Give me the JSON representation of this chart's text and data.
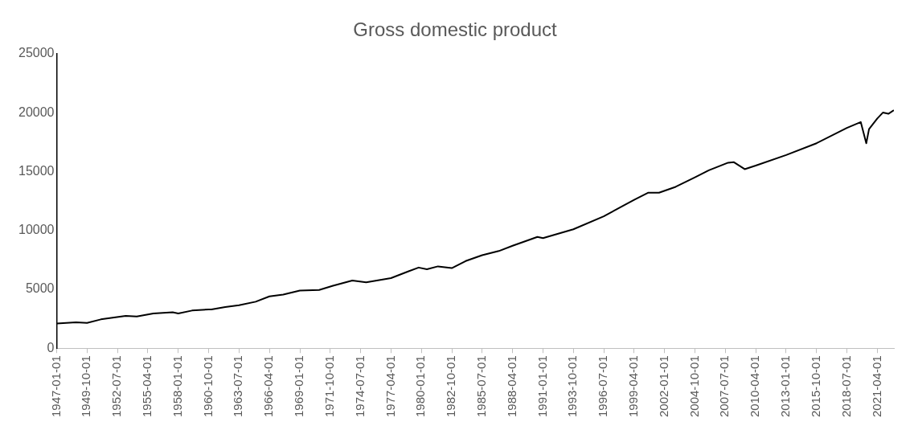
{
  "chart_data": {
    "type": "line",
    "title": "Gross domestic product",
    "x": [
      "1947-01-01",
      "1948-10-01",
      "1949-10-01",
      "1951-01-01",
      "1953-04-01",
      "1954-04-01",
      "1955-10-01",
      "1957-07-01",
      "1958-01-01",
      "1959-04-01",
      "1960-10-01",
      "1961-01-01",
      "1962-04-01",
      "1963-07-01",
      "1965-01-01",
      "1966-04-01",
      "1967-07-01",
      "1969-01-01",
      "1970-10-01",
      "1972-01-01",
      "1973-10-01",
      "1975-01-01",
      "1977-04-01",
      "1978-10-01",
      "1979-10-01",
      "1980-07-01",
      "1981-07-01",
      "1982-10-01",
      "1984-01-01",
      "1985-07-01",
      "1987-01-01",
      "1988-04-01",
      "1990-07-01",
      "1991-01-01",
      "1993-10-01",
      "1996-07-01",
      "1999-04-01",
      "2000-07-01",
      "2001-07-01",
      "2003-01-01",
      "2004-10-01",
      "2006-01-01",
      "2007-10-01",
      "2008-04-01",
      "2009-04-01",
      "2010-04-01",
      "2013-01-01",
      "2015-10-01",
      "2018-07-01",
      "2019-10-01",
      "2020-04-01",
      "2020-07-01",
      "2021-04-01",
      "2021-10-01",
      "2022-04-01",
      "2022-10-01"
    ],
    "values": [
      2100,
      2200,
      2150,
      2450,
      2750,
      2700,
      2950,
      3050,
      2950,
      3200,
      3300,
      3300,
      3500,
      3650,
      3950,
      4400,
      4550,
      4900,
      4950,
      5300,
      5750,
      5600,
      5950,
      6500,
      6850,
      6700,
      6950,
      6800,
      7400,
      7900,
      8250,
      8700,
      9450,
      9350,
      10100,
      11200,
      12600,
      13200,
      13200,
      13700,
      14500,
      15100,
      15750,
      15800,
      15200,
      15500,
      16400,
      17400,
      18700,
      19200,
      17400,
      18600,
      19500,
      20000,
      19900,
      20200
    ],
    "color": "#000000",
    "xlim": [
      "1947-01-01",
      "2022-10-01"
    ],
    "xticks": [
      "1947-01-01",
      "1949-10-01",
      "1952-07-01",
      "1955-04-01",
      "1958-01-01",
      "1960-10-01",
      "1963-07-01",
      "1966-04-01",
      "1969-01-01",
      "1971-10-01",
      "1974-07-01",
      "1977-04-01",
      "1980-01-01",
      "1982-10-01",
      "1985-07-01",
      "1988-04-01",
      "1991-01-01",
      "1993-10-01",
      "1996-07-01",
      "1999-04-01",
      "2002-01-01",
      "2004-10-01",
      "2007-07-01",
      "2010-04-01",
      "2013-01-01",
      "2015-10-01",
      "2018-07-01",
      "2021-04-01"
    ],
    "ylim": [
      0,
      25000
    ],
    "yticks": [
      0,
      5000,
      10000,
      15000,
      20000,
      25000
    ],
    "grid": false,
    "legend": false,
    "marker": "none",
    "line_style": "solid"
  }
}
